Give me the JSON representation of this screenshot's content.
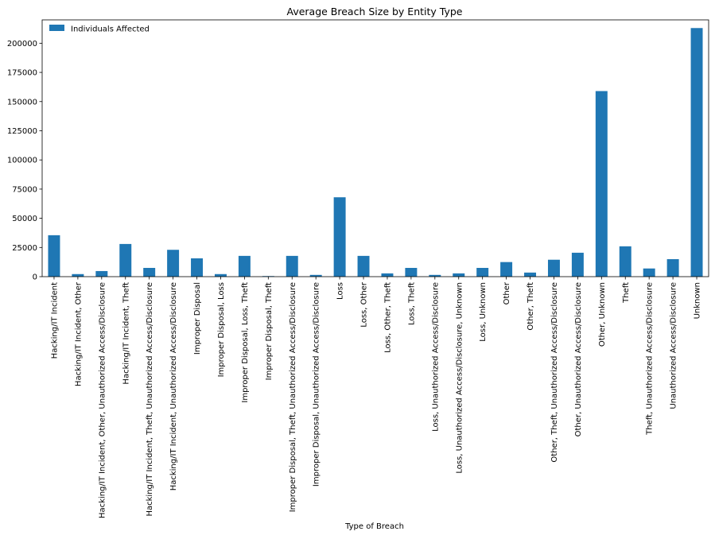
{
  "chart_data": {
    "type": "bar",
    "title": "Average Breach Size by Entity Type",
    "xlabel": "Type of Breach",
    "ylabel": "",
    "ylim": [
      0,
      220000
    ],
    "yticks": [
      0,
      25000,
      50000,
      75000,
      100000,
      125000,
      150000,
      175000,
      200000
    ],
    "legend_position": "top-left",
    "bar_color": "#1f77b4",
    "categories": [
      "Hacking/IT Incident",
      "Hacking/IT Incident, Other",
      "Hacking/IT Incident, Other, Unauthorized Access/Disclosure",
      "Hacking/IT Incident, Theft",
      "Hacking/IT Incident, Theft, Unauthorized Access/Disclosure",
      "Hacking/IT Incident, Unauthorized Access/Disclosure",
      "Improper Disposal",
      "Improper Disposal, Loss",
      "Improper Disposal, Loss, Theft",
      "Improper Disposal, Theft",
      "Improper Disposal, Theft, Unauthorized Access/Disclosure",
      "Improper Disposal, Unauthorized Access/Disclosure",
      "Loss",
      "Loss, Other",
      "Loss, Other, Theft",
      "Loss, Theft",
      "Loss, Unauthorized Access/Disclosure",
      "Loss, Unauthorized Access/Disclosure, Unknown",
      "Loss, Unknown",
      "Other",
      "Other, Theft",
      "Other, Theft, Unauthorized Access/Disclosure",
      "Other, Unauthorized Access/Disclosure",
      "Other, Unknown",
      "Theft",
      "Theft, Unauthorized Access/Disclosure",
      "Unauthorized Access/Disclosure",
      "Unknown"
    ],
    "series": [
      {
        "name": "Individuals Affected",
        "values": [
          35500,
          2200,
          4800,
          28000,
          7500,
          23000,
          15700,
          2200,
          17800,
          500,
          17800,
          1500,
          68000,
          17800,
          2800,
          7500,
          1500,
          2800,
          7500,
          12500,
          3500,
          14500,
          20500,
          159000,
          26000,
          7000,
          15000,
          213000
        ]
      }
    ]
  }
}
